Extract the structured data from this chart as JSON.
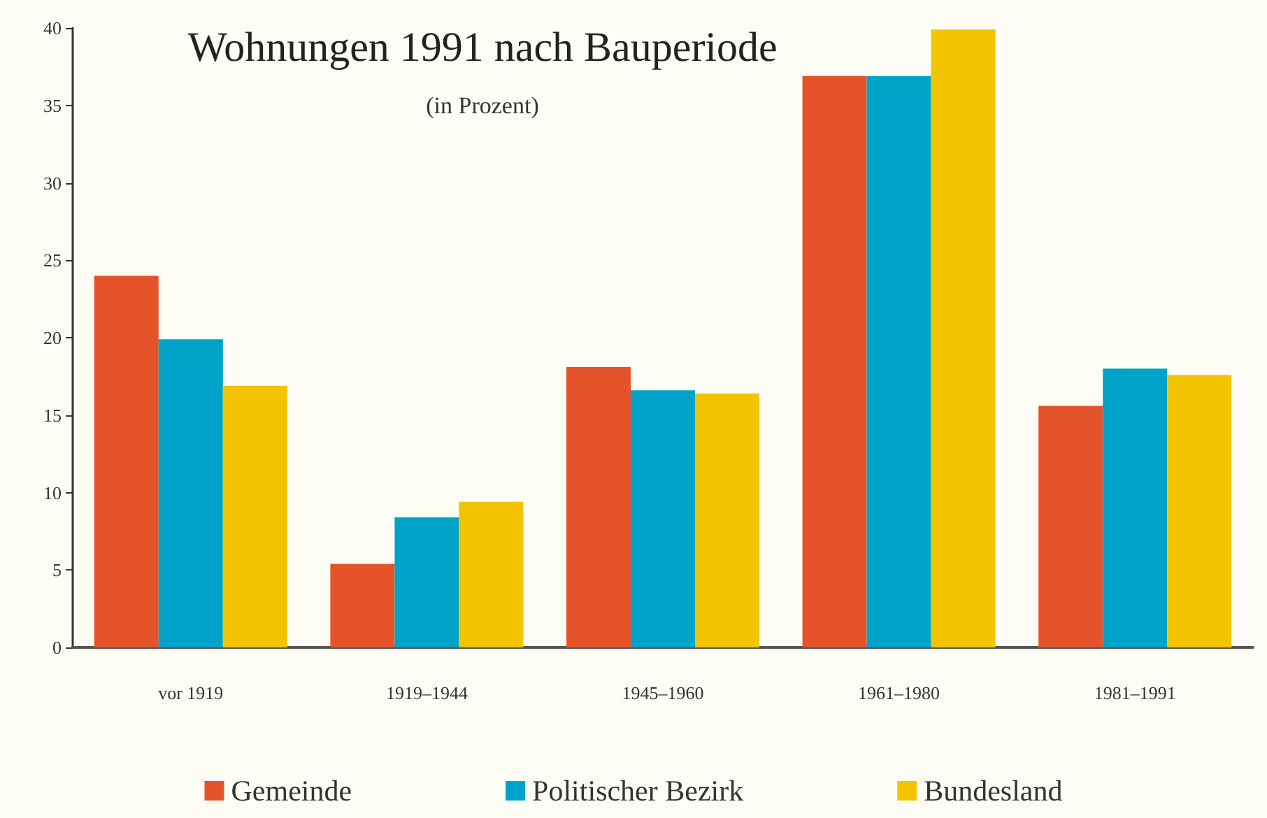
{
  "chart_data": {
    "type": "bar",
    "title": "Wohnungen 1991 nach Bauperiode",
    "subtitle": "(in Prozent)",
    "categories": [
      "vor 1919",
      "1919–1944",
      "1945–1960",
      "1961–1980",
      "1981–1991"
    ],
    "series": [
      {
        "name": "Gemeinde",
        "color": "#e4532a",
        "values": [
          24.0,
          5.4,
          18.1,
          36.9,
          15.6
        ]
      },
      {
        "name": "Politischer Bezirk",
        "color": "#00a3c8",
        "values": [
          19.9,
          8.4,
          16.6,
          36.9,
          18.0
        ]
      },
      {
        "name": "Bundesland",
        "color": "#f5c400",
        "values": [
          16.9,
          9.4,
          16.4,
          39.9,
          17.6
        ]
      }
    ],
    "ylim": [
      0,
      40
    ],
    "yticks": [
      0,
      5,
      10,
      15,
      20,
      25,
      30,
      35,
      40
    ],
    "grid": false,
    "legend": "bottom"
  }
}
